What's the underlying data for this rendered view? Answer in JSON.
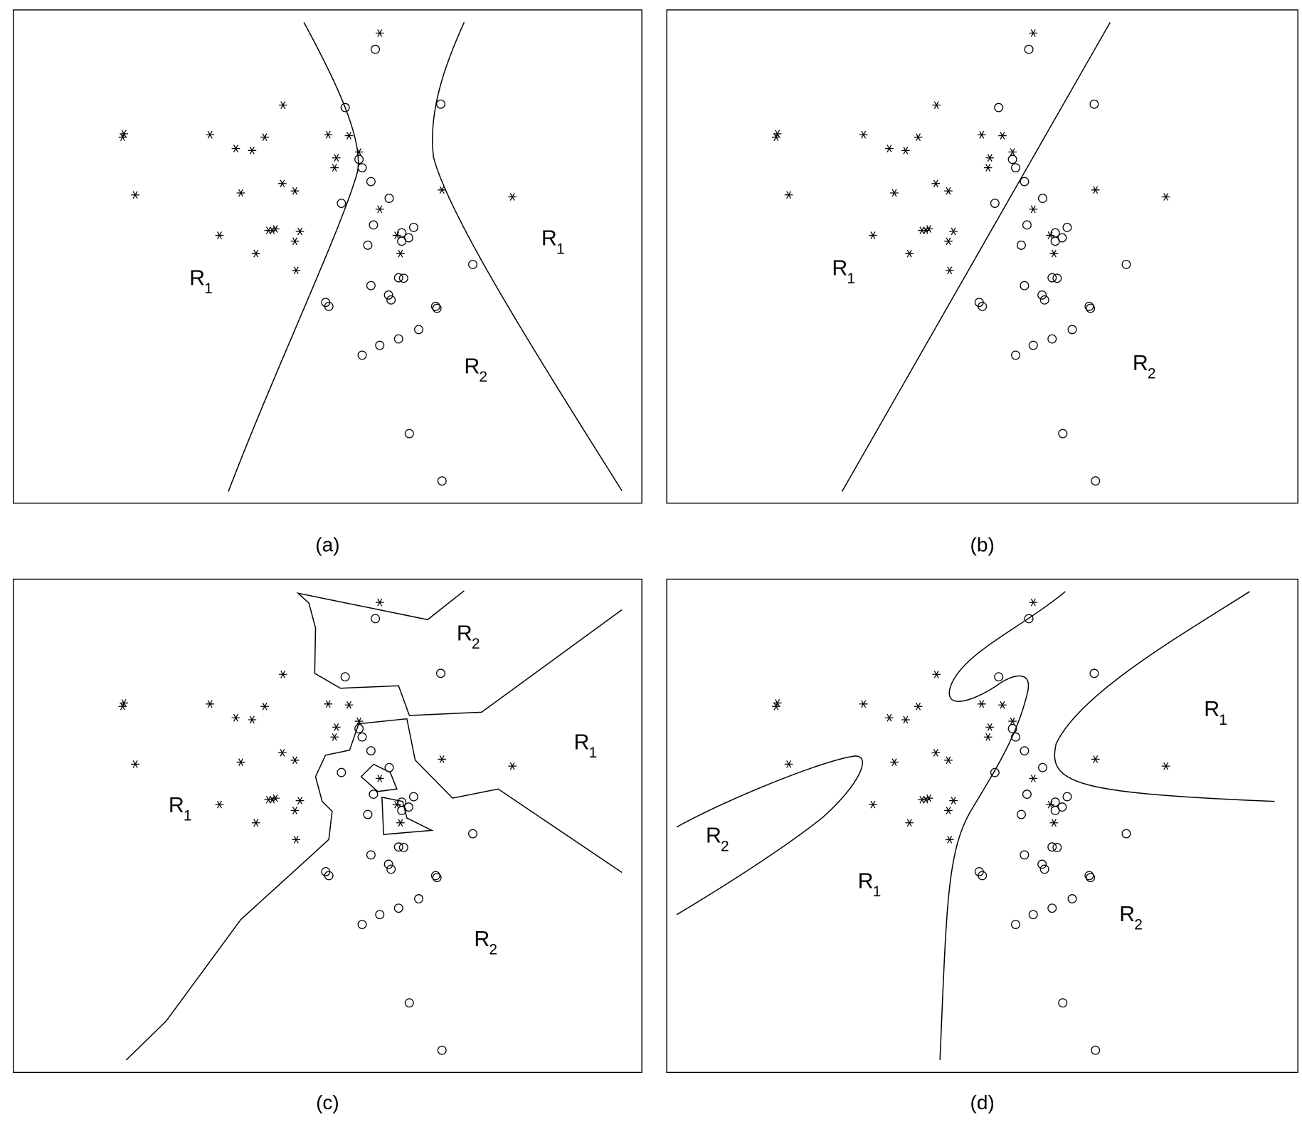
{
  "chart_data": {
    "type": "scatter",
    "xlim": [
      0,
      100
    ],
    "ylim": [
      0,
      100
    ],
    "series": [
      {
        "marker": "star",
        "color": "#000000",
        "x": [
          17.6,
          17.4,
          19.4,
          31.3,
          35.4,
          38.0,
          40.0,
          42.9,
          36.2,
          42.8,
          44.8,
          32.8,
          40.6,
          41.2,
          41.7,
          45.6,
          44.8,
          38.6,
          45.0,
          50.1,
          53.4,
          51.4,
          51.1,
          55.0,
          58.3,
          58.3,
          61.0,
          61.6,
          68.2,
          79.4
        ],
        "y": [
          74.9,
          74.2,
          62.5,
          74.7,
          71.9,
          71.5,
          74.2,
          80.7,
          62.9,
          64.8,
          63.3,
          54.3,
          55.3,
          55.3,
          55.6,
          55.1,
          53.1,
          50.6,
          47.2,
          74.7,
          74.5,
          70.0,
          68.0,
          71.2,
          95.3,
          59.6,
          54.3,
          50.6,
          63.5,
          62.1
        ]
      },
      {
        "marker": "circle",
        "color": "#000000",
        "x": [
          57.6,
          52.8,
          68.0,
          55.0,
          55.5,
          56.9,
          52.2,
          59.8,
          57.3,
          56.4,
          61.8,
          62.9,
          63.7,
          61.8,
          61.3,
          62.1,
          56.9,
          59.7,
          60.1,
          49.7,
          50.2,
          67.2,
          67.4,
          73.1,
          64.5,
          61.3,
          58.3,
          55.5,
          63.0,
          68.2
        ],
        "y": [
          92.0,
          80.2,
          80.9,
          69.7,
          68.0,
          65.2,
          60.8,
          61.8,
          56.4,
          52.3,
          54.8,
          53.8,
          55.9,
          53.1,
          45.7,
          45.6,
          44.1,
          42.2,
          41.2,
          40.7,
          39.9,
          39.9,
          39.5,
          48.4,
          35.2,
          33.3,
          32.0,
          30.0,
          14.1,
          4.5
        ]
      }
    ],
    "panels": [
      {
        "label": "(a)",
        "regions": [
          {
            "text": "R",
            "sub": "1"
          },
          {
            "text": "R",
            "sub": "1"
          },
          {
            "text": "R",
            "sub": "2"
          }
        ]
      },
      {
        "label": "(b)",
        "regions": [
          {
            "text": "R",
            "sub": "1"
          },
          {
            "text": "R",
            "sub": "2"
          }
        ]
      },
      {
        "label": "(c)",
        "regions": [
          {
            "text": "R",
            "sub": "2"
          },
          {
            "text": "R",
            "sub": "1"
          },
          {
            "text": "R",
            "sub": "1"
          },
          {
            "text": "R",
            "sub": "2"
          }
        ]
      },
      {
        "label": "(d)",
        "regions": [
          {
            "text": "R",
            "sub": "2"
          },
          {
            "text": "R",
            "sub": "1"
          },
          {
            "text": "R",
            "sub": "1"
          },
          {
            "text": "R",
            "sub": "2"
          }
        ]
      }
    ]
  }
}
